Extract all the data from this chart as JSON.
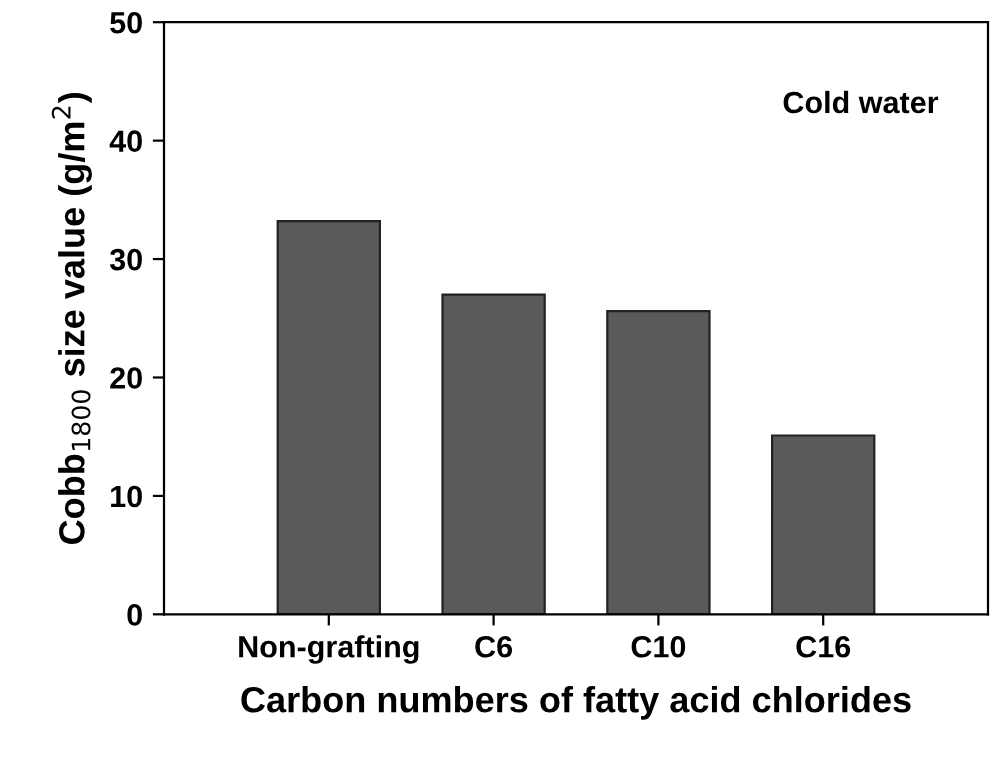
{
  "chart_data": {
    "type": "bar",
    "xlabel": "Carbon numbers of fatty acid chlorides",
    "ylabel": "Cobb$_{1800}$ size value (g/m$^{2}$)",
    "categories": [
      "Non-grafting",
      "C6",
      "C10",
      "C16"
    ],
    "values": [
      33.2,
      27.0,
      25.6,
      15.1
    ],
    "color": "#5a5a5a",
    "ylim": [
      0,
      50
    ],
    "yticks": [
      0,
      10,
      20,
      30,
      40,
      50
    ],
    "grid": false,
    "legend": false,
    "annotations": [
      "Cold water"
    ]
  }
}
